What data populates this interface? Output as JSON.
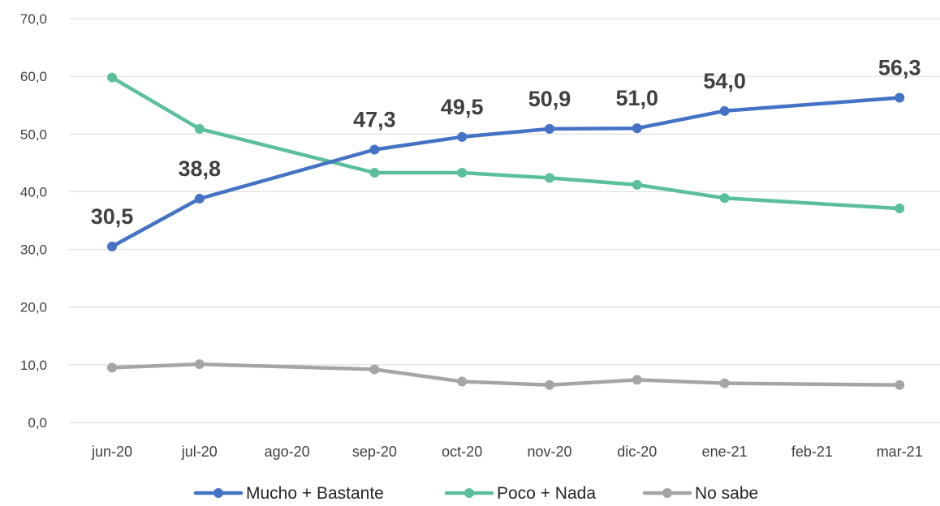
{
  "chart_data": {
    "type": "line",
    "title": "",
    "xlabel": "",
    "ylabel": "",
    "categories": [
      "jun-20",
      "jul-20",
      "ago-20",
      "sep-20",
      "oct-20",
      "nov-20",
      "dic-20",
      "ene-21",
      "feb-21",
      "mar-21"
    ],
    "ylim": [
      0,
      70
    ],
    "yticks": [
      "0,0",
      "10,0",
      "20,0",
      "30,0",
      "40,0",
      "50,0",
      "60,0",
      "70,0"
    ],
    "grid": true,
    "legend_position": "bottom",
    "series": [
      {
        "name": "Mucho + Bastante",
        "color": "#4472c4",
        "values": [
          30.5,
          38.8,
          null,
          47.3,
          49.5,
          50.9,
          51.0,
          54.0,
          null,
          56.3
        ],
        "labels": [
          "30,5",
          "38,8",
          "",
          "47,3",
          "49,5",
          "50,9",
          "51,0",
          "54,0",
          "",
          "56,3"
        ]
      },
      {
        "name": "Poco + Nada",
        "color": "#5bc09a",
        "values": [
          59.8,
          50.9,
          null,
          43.3,
          43.3,
          42.4,
          41.2,
          38.9,
          null,
          37.1
        ],
        "labels": []
      },
      {
        "name": "No sabe",
        "color": "#a5a5a5",
        "values": [
          9.5,
          10.1,
          null,
          9.2,
          7.1,
          6.5,
          7.4,
          6.8,
          null,
          6.5
        ],
        "labels": []
      }
    ]
  }
}
